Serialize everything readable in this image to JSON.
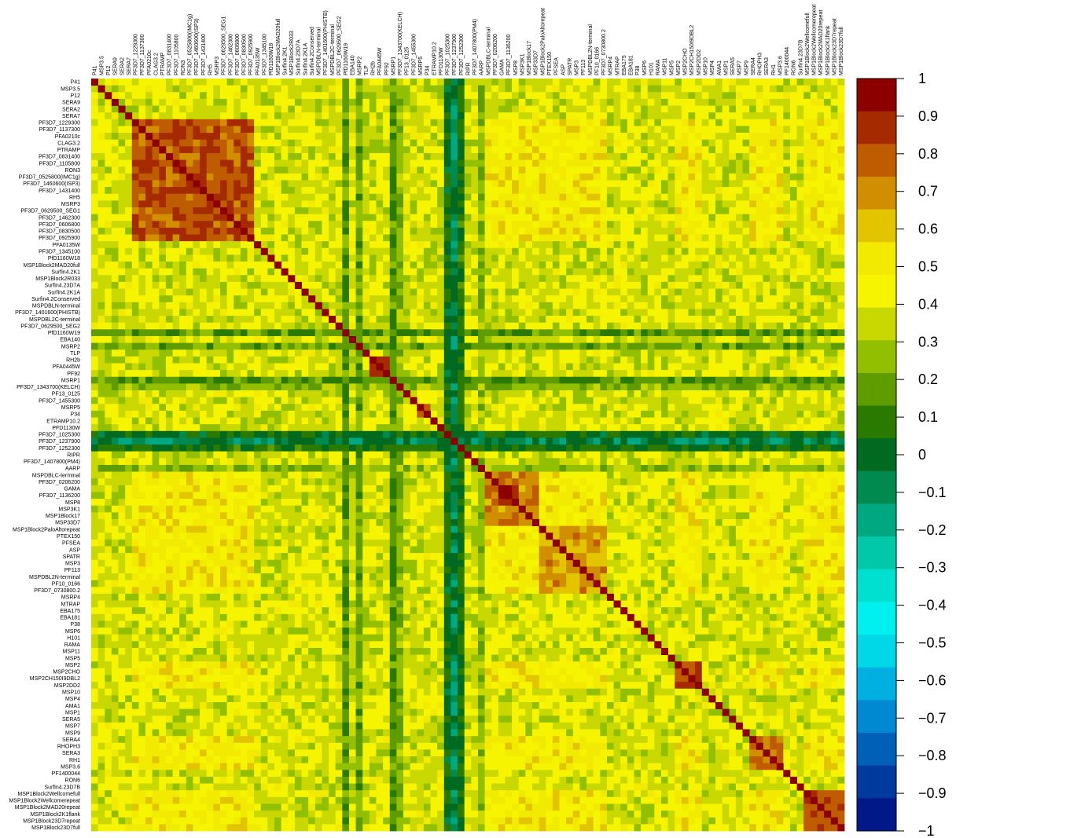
{
  "chart_data": {
    "type": "heatmap",
    "title": "",
    "xlabel": "",
    "ylabel": "",
    "labels": [
      "P41",
      "MSP3.5",
      "P12",
      "SERA9",
      "SERA2",
      "SERA7",
      "PF3D7_1229300",
      "PF3D7_1137300",
      "PFA0210c",
      "CLAG3.2",
      "PTRAMP",
      "PF3D7_0831400",
      "PF3D7_1105800",
      "RON3",
      "PF3D7_0525800(IMC1g)",
      "PF3D7_1460600(ISP3)",
      "PF3D7_1431400",
      "RH5",
      "MSRP3",
      "PF3D7_0629500_SEG1",
      "PF3D7_1462300",
      "PF3D7_0606800",
      "PF3D7_0830500",
      "PF3D7_0925900",
      "PFA0135W",
      "PF3D7_1345100",
      "PfD1160W18",
      "MSP1Block2MAD20full",
      "Surfin4.2K1",
      "MSP1Block2R033",
      "Surfin4.23D7A",
      "Surfin4.2K1A",
      "Surfin4.2Conserved",
      "MSPDBLN-terminal",
      "PF3D7_1401600(PHISTB)",
      "MSPDBL2C-terminal",
      "PF3D7_0629500_SEG2",
      "PfD1160W19",
      "EBA140",
      "MSRP2",
      "TLP",
      "RH2b",
      "PFA0445W",
      "PF92",
      "MSRP1",
      "PF3D7_1343700(KELCH)",
      "PF13_0125",
      "PF3D7_1455300",
      "MSRP5",
      "P34",
      "ETRAMP10.2",
      "PFD1130W",
      "PF3D7_1025300",
      "PF3D7_1237900",
      "PF3D7_1252300",
      "RIPR",
      "PF3D7_1407800(PM4)",
      "AARP",
      "MSPDBLC-terminal",
      "PF3D7_0206200",
      "GAMA",
      "PF3D7_1136200",
      "MSP8",
      "MSP3K1",
      "MSP1Block17",
      "MSP33D7",
      "MSP1Block2PaloAltorepeat",
      "PTEX150",
      "PFSEA",
      "ASP",
      "SPATR",
      "MSP3",
      "PF113",
      "MSPDBL2N-terminal",
      "PF10_0166",
      "PF3D7_0730800.2",
      "MSRP4",
      "MTRAP",
      "EBA175",
      "EBA181",
      "P38",
      "MSP6",
      "H101",
      "RAMA",
      "MSP11",
      "MSP5",
      "MSP2",
      "MSP2CHO",
      "MSP2CH150I9DBL2",
      "MSP2DD2",
      "MSP10",
      "MSP4",
      "AMA1",
      "MSP1",
      "SERA5",
      "MSP7",
      "MSP9",
      "SERA4",
      "RHOPH3",
      "SERA3",
      "RH1",
      "MSP3.6",
      "PF1400044",
      "RON6",
      "Surfin4.23D7B",
      "MSP1Block2Wellcomefull",
      "MSP1Block2Wellcomerepeat",
      "MSP1Block2MAD20repeat",
      "MSP1Block2K1flank",
      "MSP1Block23D7repeat",
      "MSP1Block23D7full"
    ],
    "colorbar": {
      "ticks": [
        "1",
        "0.9",
        "0.8",
        "0.7",
        "0.6",
        "0.5",
        "0.4",
        "0.3",
        "0.2",
        "0.1",
        "0",
        "−0.1",
        "−0.2",
        "−0.3",
        "−0.4",
        "−0.5",
        "−0.6",
        "−0.7",
        "−0.8",
        "−0.9",
        "−1"
      ],
      "range": [
        -1,
        1
      ],
      "colors": [
        "#8c0000",
        "#a52a00",
        "#c05c00",
        "#d18f00",
        "#e2c400",
        "#f2ea00",
        "#f6f400",
        "#c8d800",
        "#92c000",
        "#5e9c00",
        "#2a7a00",
        "#006a20",
        "#008a50",
        "#00a882",
        "#00c8a8",
        "#00e0d0",
        "#00f0f0",
        "#00d8e8",
        "#00b0e0",
        "#0088d0",
        "#0060b8",
        "#003a9c",
        "#001888"
      ],
      "colors_note": ""
    },
    "blocks": [
      {
        "start": 6,
        "end": 24,
        "value": 0.8
      },
      {
        "start": 58,
        "end": 66,
        "value": 0.72
      },
      {
        "start": 66,
        "end": 76,
        "value": 0.68
      },
      {
        "start": 86,
        "end": 90,
        "value": 0.8
      },
      {
        "start": 97,
        "end": 102,
        "value": 0.75
      },
      {
        "start": 105,
        "end": 111,
        "value": 0.8
      }
    ],
    "low_rows": [
      {
        "index": 37,
        "value": 0.15
      },
      {
        "index": 39,
        "value": 0.2
      },
      {
        "index": 44,
        "value": 0.15
      },
      {
        "index": 45,
        "value": 0.25
      },
      {
        "index": 52,
        "value": 0.02
      },
      {
        "index": 53,
        "value": -0.08
      },
      {
        "index": 54,
        "value": 0.05
      },
      {
        "index": 57,
        "value": 0.25
      }
    ],
    "high_pairs": [
      {
        "a": 41,
        "b": 42,
        "value": 0.88
      },
      {
        "a": 41,
        "b": 43,
        "value": 0.85
      },
      {
        "a": 42,
        "b": 43,
        "value": 0.9
      },
      {
        "a": 48,
        "b": 49,
        "value": 0.75
      },
      {
        "a": 60,
        "b": 61,
        "value": 0.92
      },
      {
        "a": 60,
        "b": 62,
        "value": 0.85
      },
      {
        "a": 61,
        "b": 62,
        "value": 0.9
      }
    ]
  }
}
